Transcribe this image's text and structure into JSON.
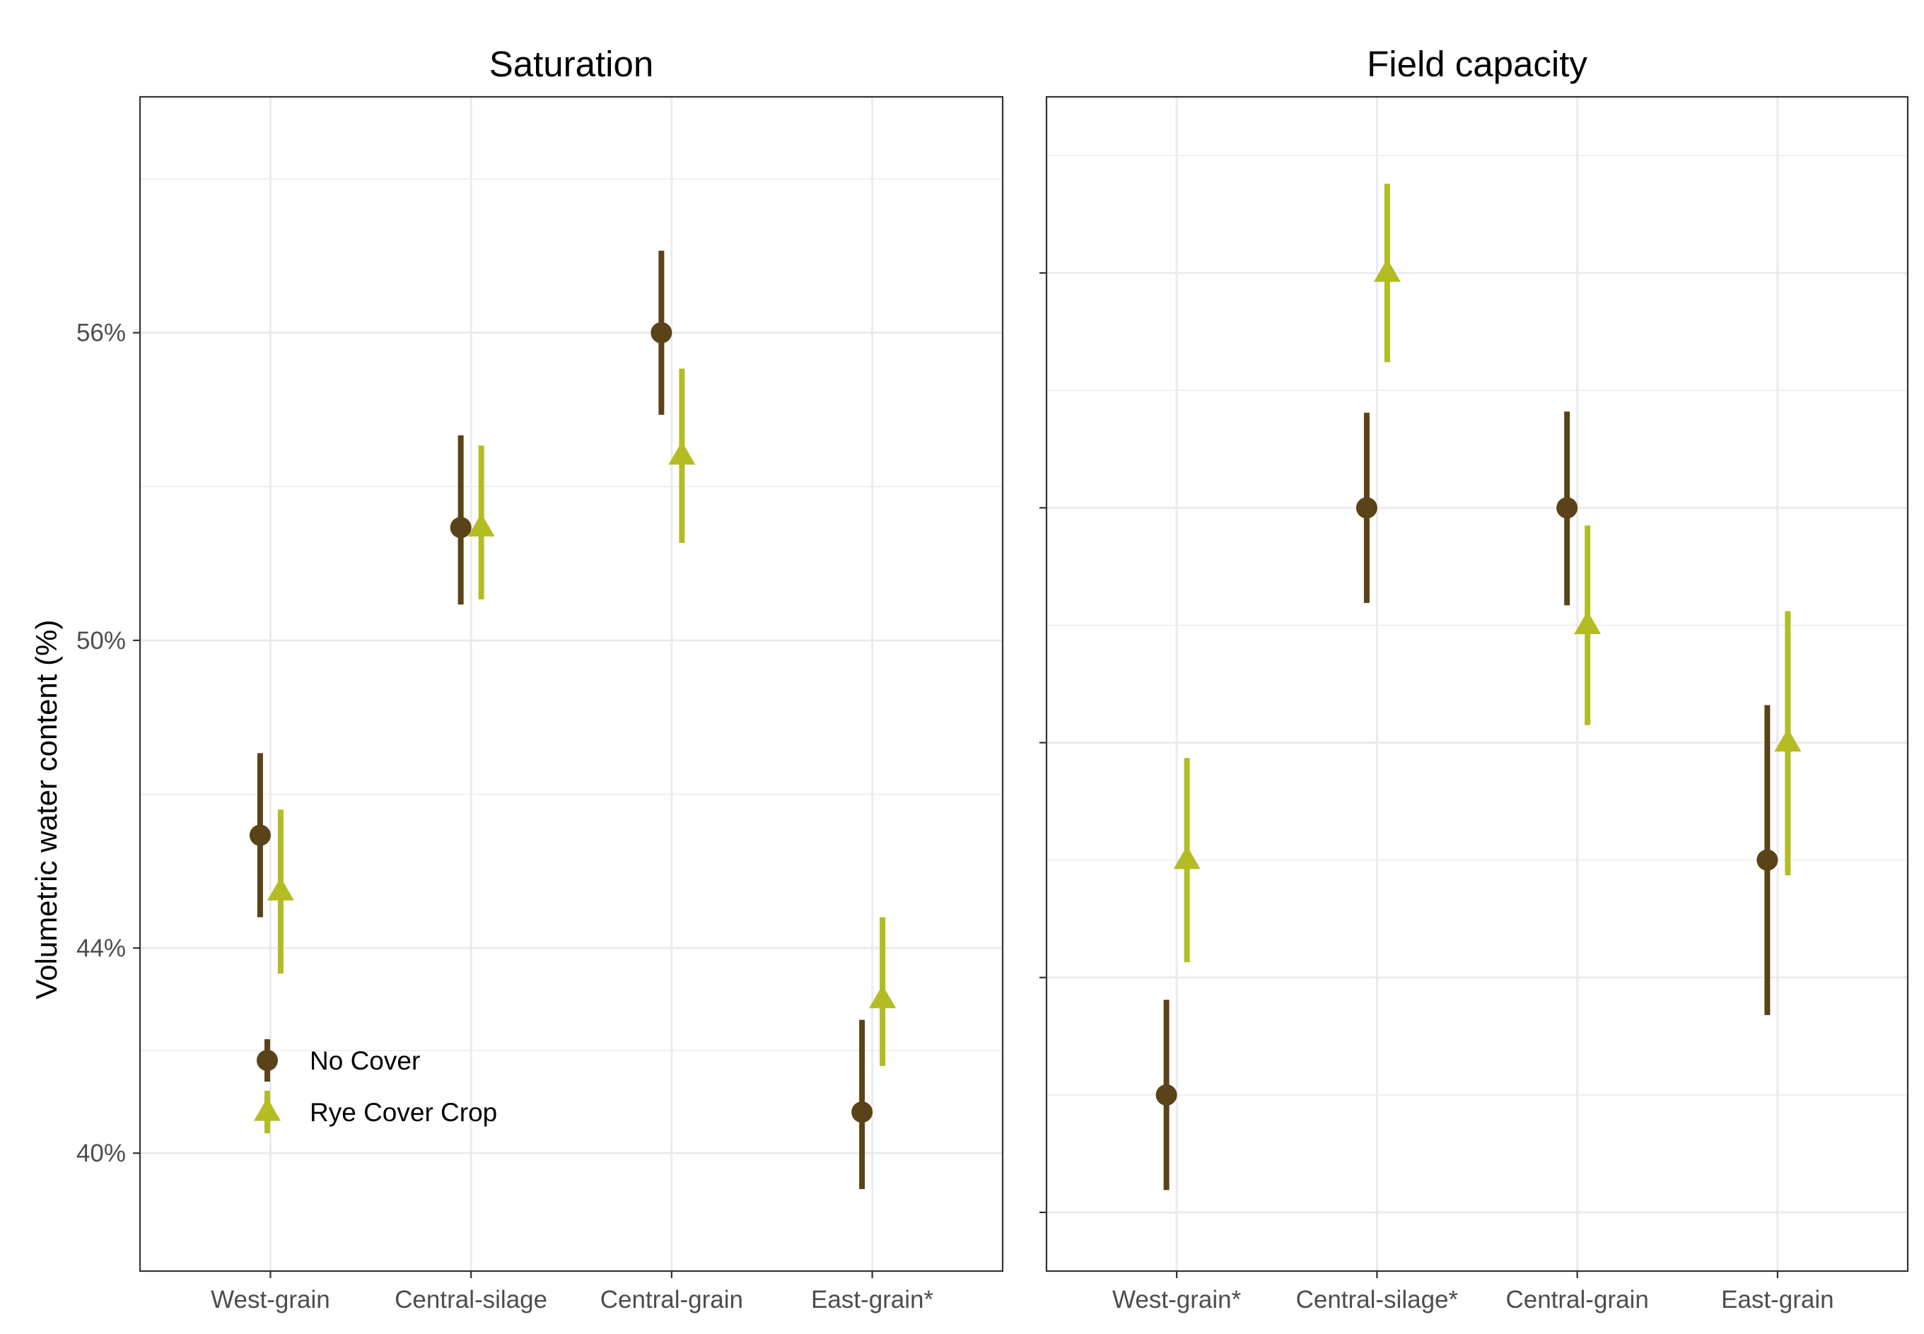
{
  "y_axis_title": "Volumetric water content (%)",
  "colors": {
    "no_cover": "#5a4219",
    "rye_cover_crop": "#b3bd23"
  },
  "legend": {
    "position": "bottom-left inside first panel",
    "items": [
      {
        "label": "No Cover",
        "shape": "circle",
        "color": "#5a4219"
      },
      {
        "label": "Rye Cover Crop",
        "shape": "triangle",
        "color": "#b3bd23"
      }
    ]
  },
  "chart_data": [
    {
      "type": "scatter",
      "title": "Saturation",
      "categories": [
        "West-grain",
        "Central-silage",
        "Central-grain",
        "East-grain*"
      ],
      "ylim": [
        37.7,
        60.6
      ],
      "yticks": [
        40,
        44,
        50,
        56
      ],
      "ytick_labels": [
        "40%",
        "44%",
        "50%",
        "56%"
      ],
      "ylabel": "Volumetric water content (%)",
      "grid": true,
      "series": [
        {
          "name": "No Cover",
          "values": [
            46.2,
            52.2,
            56.0,
            40.8
          ],
          "lower": [
            44.6,
            50.7,
            54.4,
            39.3
          ],
          "upper": [
            47.8,
            54.0,
            57.6,
            42.6
          ]
        },
        {
          "name": "Rye Cover Crop",
          "values": [
            45.1,
            52.2,
            53.6,
            43.0
          ],
          "lower": [
            43.5,
            50.8,
            51.9,
            41.7
          ],
          "upper": [
            46.7,
            53.8,
            55.3,
            44.6
          ]
        }
      ]
    },
    {
      "type": "scatter",
      "title": "Field capacity",
      "categories": [
        "West-grain*",
        "Central-silage*",
        "Central-grain",
        "East-grain"
      ],
      "ylim": [
        -0.5,
        9.5
      ],
      "yticks": [
        0,
        2,
        4,
        6,
        8
      ],
      "ytick_labels": [
        "",
        "",
        "",
        "",
        ""
      ],
      "grid": true,
      "series": [
        {
          "name": "No Cover",
          "values": [
            1.0,
            6.0,
            6.0,
            3.0
          ],
          "lower": [
            0.19,
            5.19,
            5.17,
            1.68
          ],
          "upper": [
            1.81,
            6.81,
            6.82,
            4.32
          ]
        },
        {
          "name": "Rye Cover Crop",
          "values": [
            3.0,
            8.0,
            5.0,
            4.0
          ],
          "lower": [
            2.13,
            7.24,
            4.15,
            2.87
          ],
          "upper": [
            3.87,
            8.76,
            5.85,
            5.12
          ]
        }
      ]
    }
  ]
}
